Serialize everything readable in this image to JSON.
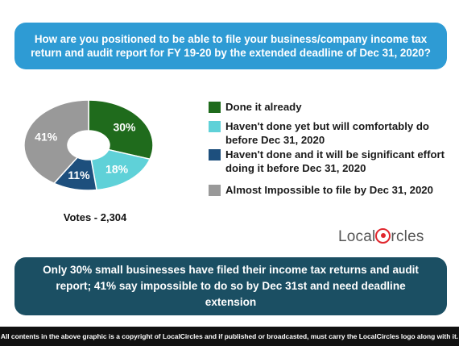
{
  "question": "How are you positioned to be able to file your business/company income tax return and audit report for FY 19-20 by the extended deadline of Dec 31, 2020?",
  "votes_label": "Votes - 2,304",
  "brand": {
    "prefix": "Local",
    "suffix": "rcles",
    "color": "#e0262d"
  },
  "summary": "Only 30% small businesses have filed their income tax returns and audit report; 41% say impossible to do so by Dec 31st and need deadline extension",
  "footer": "All contents in the above graphic is a copyright of LocalCircles and if published or broadcasted, must carry the LocalCircles logo along with it.",
  "chart_data": {
    "type": "pie",
    "donut": true,
    "slices": [
      {
        "label": "Done it already",
        "value": 30,
        "display": "30%",
        "color": "#1f6b1c"
      },
      {
        "label": "Haven't done yet but will comfortably do before Dec 31, 2020",
        "value": 18,
        "display": "18%",
        "color": "#5fd1d8"
      },
      {
        "label": "Haven't done and it will be significant effort doing it before Dec 31, 2020",
        "value": 11,
        "display": "11%",
        "color": "#1d4f7d"
      },
      {
        "label": "Almost Impossible to file by Dec 31, 2020",
        "value": 41,
        "display": "41%",
        "color": "#999999"
      }
    ],
    "legend": [
      "Done it already",
      "Haven't done yet but will comfortably do before Dec 31, 2020",
      "Haven't done and it will be significant effort doing it before Dec 31, 2020",
      "Almost Impossible to file by Dec 31, 2020"
    ],
    "legend_position": "right"
  }
}
